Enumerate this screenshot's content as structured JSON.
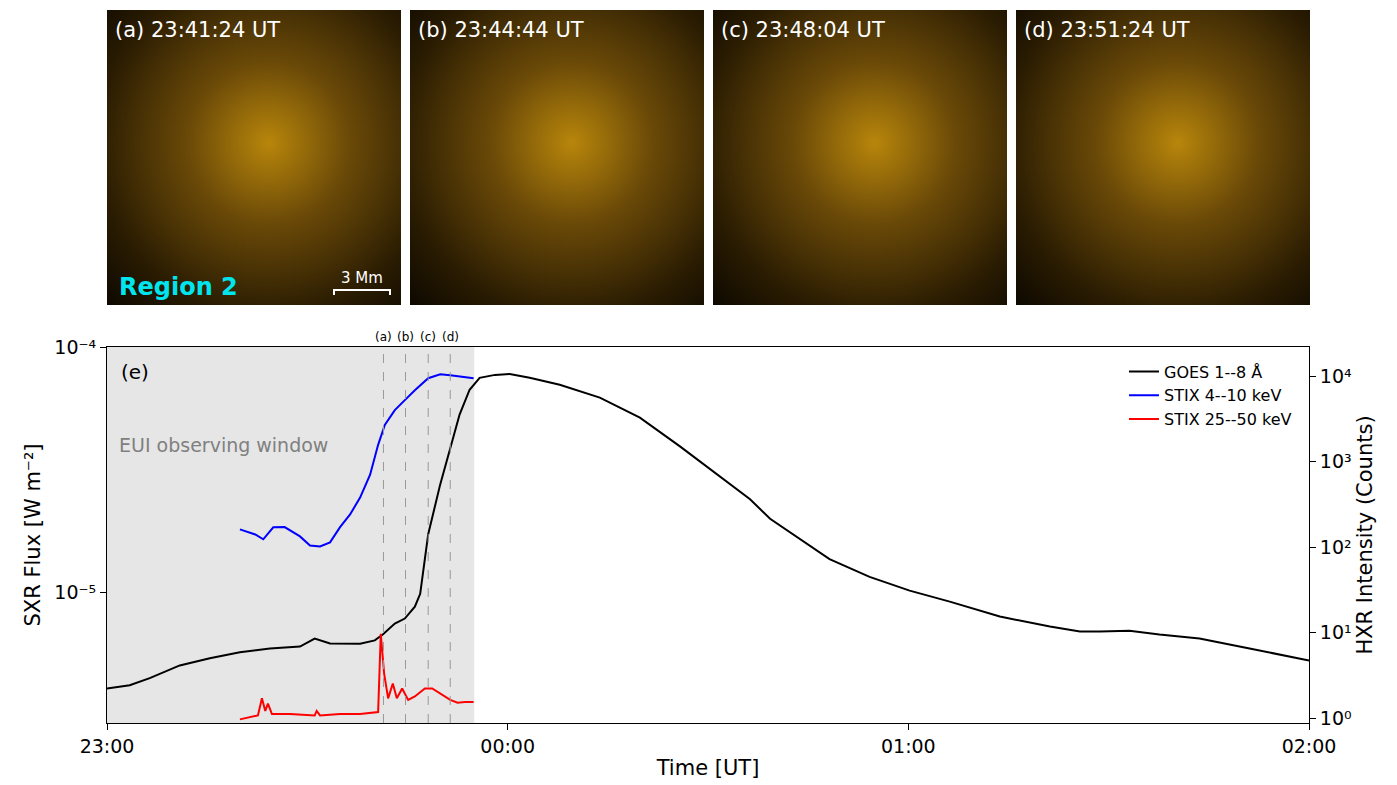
{
  "panels": [
    {
      "label": "(a) 23:41:24 UT"
    },
    {
      "label": "(b) 23:44:44 UT"
    },
    {
      "label": "(c) 23:48:04 UT"
    },
    {
      "label": "(d) 23:51:24 UT"
    }
  ],
  "region_label": "Region 2",
  "scale_bar": "3 Mm",
  "chart_data": {
    "type": "line",
    "panel_label": "(e)",
    "x_label": "Time [UT]",
    "y_label": "SXR Flux [W m⁻²]",
    "y2_label": "HXR Intensity (Counts)",
    "xlim": [
      0,
      180
    ],
    "xticks": [
      {
        "value": 0,
        "label": "23:00"
      },
      {
        "value": 60,
        "label": "00:00"
      },
      {
        "value": 120,
        "label": "01:00"
      },
      {
        "value": 180,
        "label": "02:00"
      }
    ],
    "ylim": [
      2.95e-06,
      0.0001
    ],
    "yticks": [
      {
        "value": 1e-05,
        "label": "10⁻⁵"
      },
      {
        "value": 0.0001,
        "label": "10⁻⁴"
      }
    ],
    "y2lim": [
      0.88,
      22000
    ],
    "y2ticks": [
      {
        "value": 1,
        "label": "10⁰"
      },
      {
        "value": 10,
        "label": "10¹"
      },
      {
        "value": 100,
        "label": "10²"
      },
      {
        "value": 1000,
        "label": "10³"
      },
      {
        "value": 10000,
        "label": "10⁴"
      }
    ],
    "log": "y",
    "grid": false,
    "legend": "top right",
    "shaded_window": {
      "label": "EUI observing window",
      "x": [
        0,
        55
      ]
    },
    "markers": [
      {
        "label": "(a)",
        "x": 41.4
      },
      {
        "label": "(b)",
        "x": 44.7
      },
      {
        "label": "(c)",
        "x": 48.1
      },
      {
        "label": "(d)",
        "x": 51.4
      }
    ],
    "series": [
      {
        "name": "GOES 1--8 Å",
        "color": "#000000",
        "axis": "y",
        "x": [
          0,
          3.4,
          6.4,
          10.9,
          15.4,
          19.9,
          24.4,
          28.9,
          31.1,
          33.4,
          37.9,
          40.1,
          41.3,
          43.1,
          44.6,
          46.1,
          46.9,
          48.1,
          49.9,
          51.3,
          52.8,
          54.3,
          55.8,
          58.1,
          60.3,
          63.3,
          67.8,
          73.8,
          79.8,
          85.8,
          90.3,
          96.3,
          99.3,
          103.7,
          108.2,
          114.2,
          120.2,
          126.2,
          133.7,
          141.2,
          145.7,
          148.7,
          153.1,
          157.6,
          163.6,
          171.1,
          175.6,
          180
        ],
        "values": [
          4.08e-06,
          4.2e-06,
          4.49e-06,
          5.06e-06,
          5.41e-06,
          5.72e-06,
          5.93e-06,
          6.04e-06,
          6.51e-06,
          6.22e-06,
          6.2e-06,
          6.4e-06,
          6.76e-06,
          7.49e-06,
          7.85e-06,
          8.77e-06,
          9.9e-06,
          1.73e-05,
          2.76e-05,
          3.83e-05,
          5.31e-05,
          6.7e-05,
          7.49e-05,
          7.7e-05,
          7.77e-05,
          7.49e-05,
          7.02e-05,
          6.22e-05,
          5.16e-05,
          3.94e-05,
          3.18e-05,
          2.4e-05,
          2e-05,
          1.66e-05,
          1.37e-05,
          1.16e-05,
          1.02e-05,
          9.2e-06,
          8e-06,
          7.28e-06,
          6.95e-06,
          6.95e-06,
          7e-06,
          6.76e-06,
          6.51e-06,
          5.93e-06,
          5.6e-06,
          5.3e-06
        ]
      },
      {
        "name": "STIX 4--10 keV",
        "color": "#0000ff",
        "axis": "y2",
        "x": [
          19.9,
          22.2,
          23.4,
          24.9,
          26.6,
          28.9,
          30.4,
          31.9,
          33.4,
          34.9,
          36.4,
          37.9,
          39.4,
          40.6,
          41.6,
          43.1,
          44.6,
          46.1,
          48.1,
          49.9,
          51.4,
          54.9
        ],
        "values": [
          162,
          141,
          124,
          171,
          172,
          134,
          105,
          102,
          114,
          172,
          242,
          381,
          706,
          1578,
          2692,
          4025,
          5260,
          6875,
          9480,
          10540,
          10270,
          9480
        ]
      },
      {
        "name": "STIX 25--50 keV",
        "color": "#ff0000",
        "axis": "y2",
        "x": [
          19.9,
          22.6,
          23.2,
          23.7,
          24.1,
          24.7,
          27.4,
          31.1,
          31.4,
          31.9,
          34.9,
          37.9,
          40.6,
          41.0,
          41.5,
          42.1,
          42.8,
          43.4,
          44.2,
          45.1,
          46.1,
          47.6,
          48.7,
          49.9,
          51.4,
          52.5,
          53.6,
          54.9
        ],
        "values": [
          0.97,
          1.08,
          1.71,
          1.22,
          1.48,
          1.12,
          1.12,
          1.08,
          1.22,
          1.08,
          1.12,
          1.12,
          1.18,
          9.73,
          3.33,
          1.71,
          2.55,
          1.71,
          2.23,
          1.64,
          1.8,
          2.23,
          2.23,
          1.95,
          1.64,
          1.52,
          1.55,
          1.55
        ]
      }
    ]
  }
}
